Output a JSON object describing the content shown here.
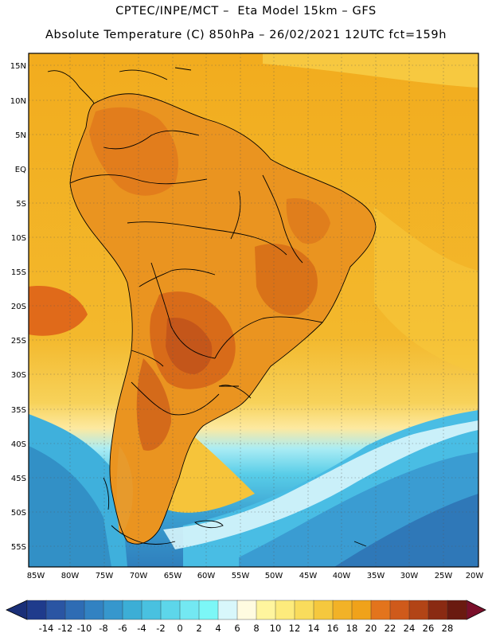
{
  "header": {
    "line1": "CPTEC/INPE/MCT –  Eta Model 15km – GFS",
    "line2": "Absolute Temperature (C) 850hPa – 26/02/2021 12UTC fct=159h"
  },
  "map": {
    "lat_labels": [
      "15N",
      "10N",
      "5N",
      "EQ",
      "5S",
      "10S",
      "15S",
      "20S",
      "25S",
      "30S",
      "35S",
      "40S",
      "45S",
      "50S",
      "55S"
    ],
    "lon_labels": [
      "85W",
      "80W",
      "75W",
      "70W",
      "65W",
      "60W",
      "55W",
      "50W",
      "45W",
      "40W",
      "35W",
      "30W",
      "25W",
      "20W"
    ],
    "colors": {
      "ocean_warm": "#f2ae1e",
      "ocean_mid": "#f5c53c",
      "land_hot": "#e07a1a",
      "land_hottest": "#c85a14",
      "cool_sea": "#4fc3ea",
      "cold_sea": "#2d7fbf",
      "coast": "#000000"
    }
  },
  "colorbar": {
    "labels": [
      "-14",
      "-12",
      "-10",
      "-8",
      "-6",
      "-4",
      "-2",
      "0",
      "2",
      "4",
      "6",
      "8",
      "10",
      "12",
      "14",
      "16",
      "18",
      "20",
      "22",
      "24",
      "26",
      "28"
    ],
    "colors": [
      "#1f3b8c",
      "#2a55a3",
      "#2e6cb4",
      "#3282c2",
      "#3697cd",
      "#3caed6",
      "#49c1e0",
      "#5dd6ea",
      "#73e8f2",
      "#7cf7f7",
      "#d8f7fb",
      "#fffbe0",
      "#fff59e",
      "#fdeb7c",
      "#f9dc5c",
      "#f5c83e",
      "#f2b227",
      "#f0a21a",
      "#e3741c",
      "#cf5a1b",
      "#b24416",
      "#8a2a12",
      "#6a1a10"
    ],
    "min_color": "#1a2f78",
    "max_color": "#7a0f2a"
  }
}
